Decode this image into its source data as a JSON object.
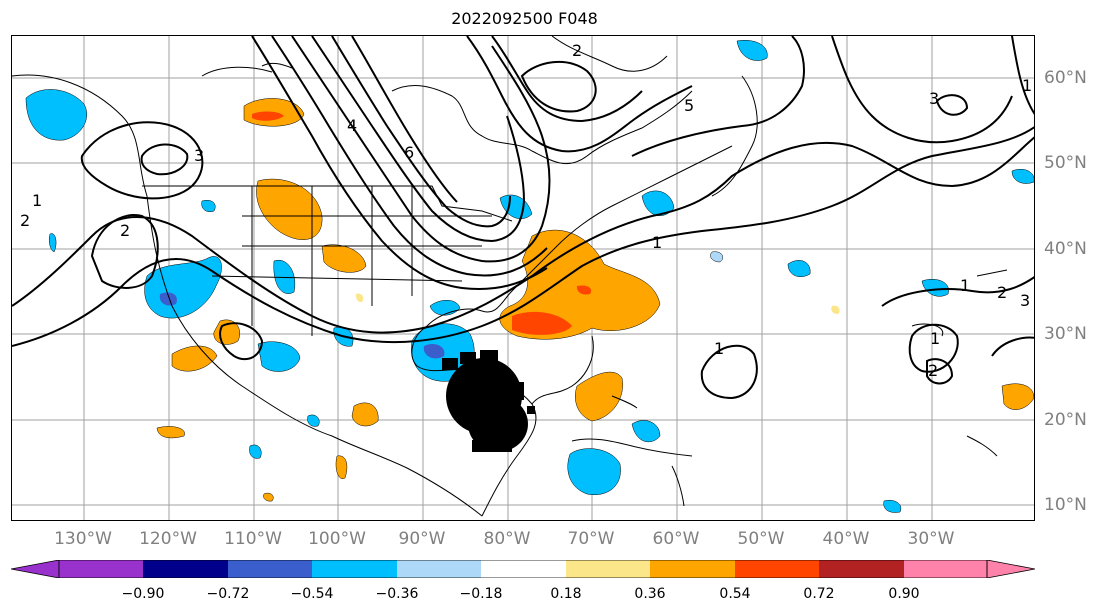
{
  "title": "2022092500 F048",
  "map": {
    "projection": "lat-lon",
    "lon_labels": [
      "130°W",
      "120°W",
      "110°W",
      "100°W",
      "90°W",
      "80°W",
      "70°W",
      "60°W",
      "50°W",
      "40°W",
      "30°W"
    ],
    "lat_labels": [
      "60°N",
      "50°N",
      "40°N",
      "30°N",
      "20°N",
      "10°N"
    ],
    "contour_labels": [
      "2",
      "1",
      "3",
      "4",
      "5",
      "6",
      "2",
      "1",
      "3",
      "2",
      "1",
      "1",
      "2",
      "1",
      "3",
      "2",
      "1"
    ],
    "contour_color": "#000000",
    "grid_color": "#a0a0a0"
  },
  "colorbar": {
    "tick_labels": [
      "−0.90",
      "−0.72",
      "−0.54",
      "−0.36",
      "−0.18",
      "0.18",
      "0.36",
      "0.54",
      "0.72",
      "0.90"
    ],
    "colors": [
      "#9932cc",
      "#00008b",
      "#3a5fcd",
      "#00bfff",
      "#add8f7",
      "#ffffff",
      "#fce68a",
      "#ffa500",
      "#ff4500",
      "#b22222",
      "#ff82ab"
    ]
  }
}
